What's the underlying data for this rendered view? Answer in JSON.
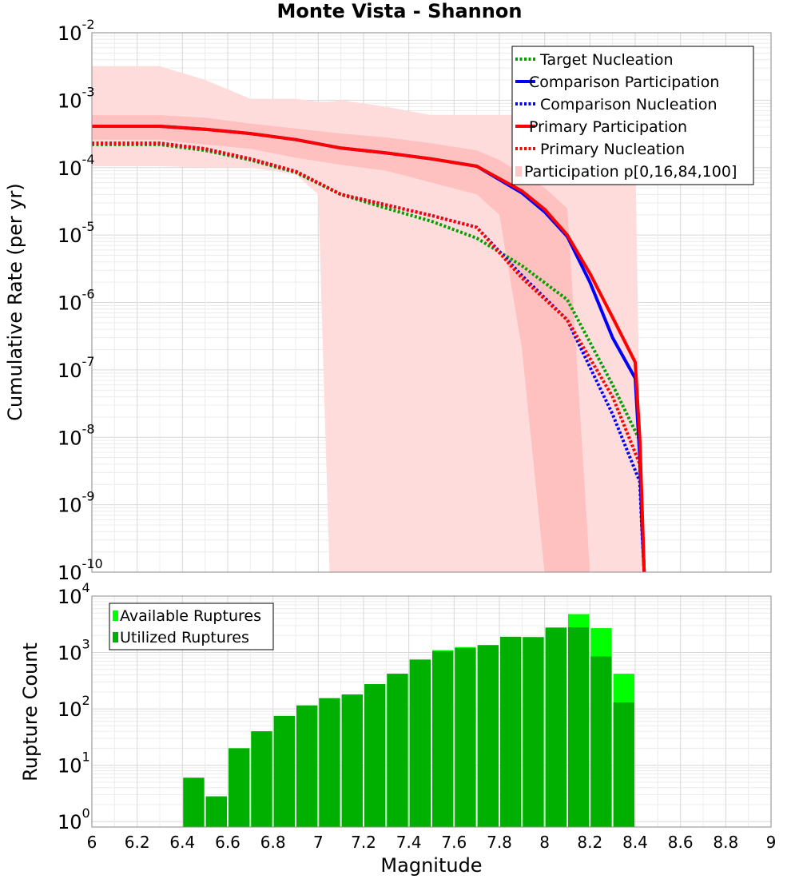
{
  "chart_data": [
    {
      "type": "line",
      "title": "Monte Vista - Shannon",
      "xlabel": "",
      "ylabel": "Cumulative Rate (per yr)",
      "xlim": [
        6,
        9
      ],
      "ylim": [
        1e-10,
        0.01
      ],
      "yscale": "log",
      "yticks": [
        {
          "base": "10",
          "exp": "-2"
        },
        {
          "base": "10",
          "exp": "-3"
        },
        {
          "base": "10",
          "exp": "-4"
        },
        {
          "base": "10",
          "exp": "-5"
        },
        {
          "base": "10",
          "exp": "-6"
        },
        {
          "base": "10",
          "exp": "-7"
        },
        {
          "base": "10",
          "exp": "-8"
        },
        {
          "base": "10",
          "exp": "-9"
        },
        {
          "base": "10",
          "exp": "-10"
        }
      ],
      "legend": [
        {
          "label": "Target Nucleation",
          "color": "#00a000",
          "style": "dotted"
        },
        {
          "label": "Comparison Participation",
          "color": "#0000ff",
          "style": "solid"
        },
        {
          "label": "Comparison Nucleation",
          "color": "#0000ff",
          "style": "dotted"
        },
        {
          "label": "Primary Participation",
          "color": "#ff0000",
          "style": "solid"
        },
        {
          "label": "Primary Nucleation",
          "color": "#ff0000",
          "style": "dotted"
        },
        {
          "label": "Participation p[0,16,84,100]",
          "color": "#ffc8c8",
          "style": "fill"
        }
      ],
      "series": [
        {
          "name": "Target Nucleation",
          "color": "#00a000",
          "style": "dotted",
          "x": [
            6.0,
            6.3,
            6.5,
            6.7,
            6.9,
            7.1,
            7.3,
            7.5,
            7.7,
            7.9,
            8.1,
            8.3,
            8.42,
            8.43,
            8.44
          ],
          "y": [
            0.00022,
            0.00022,
            0.00018,
            0.00013,
            8.5e-05,
            4e-05,
            2.5e-05,
            1.6e-05,
            9e-06,
            3.5e-06,
            1.1e-06,
            6e-08,
            9e-09,
            1e-09,
            1e-11
          ]
        },
        {
          "name": "Comparison Nucleation",
          "color": "#0000ff",
          "style": "dotted",
          "x": [
            6.0,
            6.3,
            6.5,
            6.7,
            6.9,
            7.1,
            7.3,
            7.5,
            7.7,
            7.9,
            8.1,
            8.3,
            8.42,
            8.43,
            8.44
          ],
          "y": [
            0.00023,
            0.00023,
            0.00019,
            0.000135,
            8.8e-05,
            4e-05,
            2.8e-05,
            1.95e-05,
            1.3e-05,
            2.5e-06,
            5.5e-07,
            2.2e-08,
            2.2e-09,
            4e-10,
            1e-11
          ]
        },
        {
          "name": "Primary Nucleation",
          "color": "#ff0000",
          "style": "dotted",
          "x": [
            6.0,
            6.3,
            6.5,
            6.7,
            6.9,
            7.1,
            7.3,
            7.5,
            7.7,
            7.9,
            8.1,
            8.3,
            8.42,
            8.43,
            8.44
          ],
          "y": [
            0.00023,
            0.00023,
            0.00019,
            0.000135,
            8.8e-05,
            4e-05,
            2.8e-05,
            1.95e-05,
            1.3e-05,
            2.3e-06,
            5.5e-07,
            4e-08,
            4e-09,
            6e-10,
            1e-11
          ]
        },
        {
          "name": "Comparison Participation",
          "color": "#0000ff",
          "style": "solid",
          "x": [
            6.0,
            6.3,
            6.5,
            6.7,
            6.9,
            7.1,
            7.3,
            7.5,
            7.7,
            7.9,
            8.0,
            8.1,
            8.2,
            8.3,
            8.4,
            8.42,
            8.43,
            8.44
          ],
          "y": [
            0.00041,
            0.00041,
            0.00037,
            0.00032,
            0.00026,
            0.000195,
            0.000165,
            0.000135,
            0.000105,
            4.2e-05,
            2.2e-05,
            9.5e-06,
            2e-06,
            3e-07,
            7.5e-08,
            5e-09,
            5e-10,
            1e-11
          ]
        },
        {
          "name": "Primary Participation",
          "color": "#ff0000",
          "style": "solid",
          "x": [
            6.0,
            6.3,
            6.5,
            6.7,
            6.9,
            7.1,
            7.3,
            7.5,
            7.7,
            7.9,
            8.0,
            8.1,
            8.2,
            8.3,
            8.4,
            8.42,
            8.43,
            8.44
          ],
          "y": [
            0.00041,
            0.00041,
            0.00037,
            0.00032,
            0.00026,
            0.000195,
            0.000165,
            0.000135,
            0.000105,
            4.5e-05,
            2.4e-05,
            1e-05,
            2.7e-06,
            6e-07,
            1.3e-07,
            1e-08,
            1e-09,
            1e-11
          ]
        }
      ],
      "bands": [
        {
          "name": "p0-p100",
          "color": "#ffdcdc",
          "x": [
            6.0,
            6.3,
            6.5,
            6.7,
            6.9,
            7.0,
            7.05,
            7.1,
            7.3,
            7.5,
            7.7,
            7.8,
            7.9,
            8.0,
            8.1,
            8.2,
            8.3,
            8.4,
            8.43
          ],
          "upper": [
            0.0032,
            0.0032,
            0.002,
            0.00105,
            0.00105,
            0.00095,
            0.00095,
            0.001,
            0.0008,
            0.0006,
            0.0006,
            0.0006,
            0.0006,
            0.00025,
            0.00025,
            0.00025,
            0.00025,
            0.00025,
            1e-11
          ],
          "lower": [
            0.000105,
            0.000105,
            0.0001,
            0.0001,
            8e-05,
            4e-05,
            1e-11,
            1e-11,
            1e-11,
            1e-11,
            1e-11,
            1e-11,
            1e-11,
            1e-11,
            1e-11,
            1e-11,
            1e-11,
            1e-11,
            1e-11
          ]
        },
        {
          "name": "p16-p84",
          "color": "#ffc0c0",
          "x": [
            6.0,
            6.3,
            6.5,
            6.7,
            6.9,
            7.1,
            7.3,
            7.5,
            7.7,
            7.8,
            7.9,
            8.0,
            8.1,
            8.2,
            8.21
          ],
          "upper": [
            0.0006,
            0.0006,
            0.00055,
            0.00045,
            0.00038,
            0.00032,
            0.00028,
            0.00023,
            0.00018,
            0.00013,
            8e-05,
            5e-05,
            2.5e-05,
            1e-10,
            1e-11
          ],
          "lower": [
            0.00026,
            0.00026,
            0.00022,
            0.00019,
            0.00014,
            0.00011,
            9e-05,
            6e-05,
            4e-05,
            2e-05,
            2e-07,
            1e-11,
            1e-11,
            1e-11,
            1e-11
          ]
        }
      ]
    },
    {
      "type": "bar",
      "xlabel": "Magnitude",
      "ylabel": "Rupture Count",
      "xlim": [
        6,
        9
      ],
      "ylim": [
        0.8,
        10000
      ],
      "yscale": "log",
      "xticks": [
        "6",
        "6.2",
        "6.4",
        "6.6",
        "6.8",
        "7",
        "7.2",
        "7.4",
        "7.6",
        "7.8",
        "8",
        "8.2",
        "8.4",
        "8.6",
        "8.8",
        "9"
      ],
      "yticks": [
        {
          "base": "10",
          "exp": "4"
        },
        {
          "base": "10",
          "exp": "3"
        },
        {
          "base": "10",
          "exp": "2"
        },
        {
          "base": "10",
          "exp": "1"
        },
        {
          "base": "10",
          "exp": "0"
        }
      ],
      "bar_width": 0.1,
      "legend": [
        {
          "label": "Available Ruptures",
          "color": "#00ff00"
        },
        {
          "label": "Utilized Ruptures",
          "color": "#00b000"
        }
      ],
      "categories": [
        6.45,
        6.55,
        6.65,
        6.75,
        6.85,
        6.95,
        7.05,
        7.15,
        7.25,
        7.35,
        7.45,
        7.55,
        7.65,
        7.75,
        7.85,
        7.95,
        8.05,
        8.15,
        8.25,
        8.35
      ],
      "series": [
        {
          "name": "Available Ruptures",
          "color": "#00ff00",
          "values": [
            6,
            2.8,
            20,
            40,
            75,
            115,
            155,
            180,
            275,
            420,
            750,
            1100,
            1250,
            1350,
            1900,
            1900,
            2800,
            4800,
            2700,
            420
          ]
        },
        {
          "name": "Utilized Ruptures",
          "color": "#00b000",
          "values": [
            6,
            2.8,
            20,
            40,
            75,
            115,
            155,
            180,
            275,
            420,
            750,
            1050,
            1200,
            1350,
            1900,
            1850,
            2700,
            2800,
            850,
            130
          ]
        }
      ]
    }
  ]
}
